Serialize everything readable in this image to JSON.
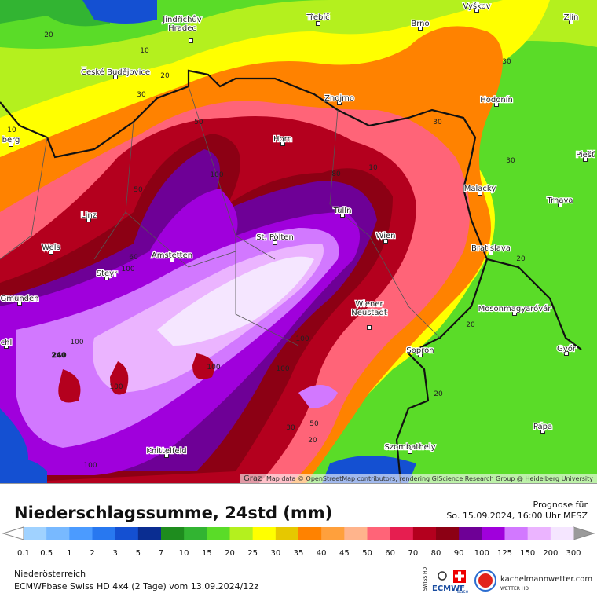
{
  "map": {
    "attribution_city": "Graz",
    "attribution": "Map data © OpenStreetMap contributors, rendering GIScience Research Group @ Heidelberg University",
    "cities": [
      [
        "Jindřichův",
        "Hradec"
      ],
      [
        "Třebíč"
      ],
      [
        "Brno"
      ],
      [
        "Vyškov"
      ],
      [
        "Zlín"
      ],
      [
        "České Budějovice"
      ],
      [
        "Znojmo"
      ],
      [
        "Hodonín"
      ],
      [
        "Horn"
      ],
      [
        "Malacky"
      ],
      [
        "Trnava"
      ],
      [
        "Linz"
      ],
      [
        "Tulln"
      ],
      [
        "Wien"
      ],
      [
        "St. Pölten"
      ],
      [
        "Bratislava"
      ],
      [
        "Wels"
      ],
      [
        "Amstetten"
      ],
      [
        "Steyr"
      ],
      [
        "Gmunden"
      ],
      [
        "Wiener",
        "Neustadt"
      ],
      [
        "Mosonmagyaróvár"
      ],
      [
        "Győr"
      ],
      [
        "Sopron"
      ],
      [
        "Pápa"
      ],
      [
        "Knittelfeld"
      ],
      [
        "Szombathely"
      ],
      [
        "Piešť"
      ],
      [
        "berg"
      ],
      [
        "chl"
      ]
    ],
    "contour_labels": [
      20,
      10,
      20,
      30,
      50,
      30,
      30,
      10,
      10,
      50,
      80,
      100,
      60,
      100,
      100,
      100,
      240,
      100,
      100,
      30,
      20,
      20,
      30,
      20,
      20,
      50,
      100,
      100
    ],
    "max_label": 240
  },
  "footer": {
    "title": "Niederschlagssumme, 24std (mm)",
    "forecast_label": "Prognose für",
    "forecast_time": "So. 15.09.2024, 16:00 Uhr MESZ",
    "region": "Niederösterreich",
    "model_run": "ECMWFbase Swiss HD 4x4 (2 Tage) vom 13.09.2024/12z",
    "brand": "kachelmannwetter.com",
    "brand_sub": "WETTER HD",
    "logo_a": "SWISS HD",
    "logo_b": "ECMWF",
    "logo_c": "base"
  },
  "legend": {
    "ticks": [
      0.1,
      0.5,
      1,
      2,
      3,
      5,
      7,
      10,
      15,
      20,
      25,
      30,
      35,
      40,
      45,
      50,
      60,
      70,
      80,
      90,
      100,
      125,
      150,
      200,
      300
    ],
    "colors": [
      "#a0d2ff",
      "#78b9ff",
      "#4b9bff",
      "#2878f0",
      "#1450d2",
      "#0a2d91",
      "#1e8c1e",
      "#32b432",
      "#5adc28",
      "#b4f01e",
      "#ffff00",
      "#e6c800",
      "#ff8200",
      "#ffa03c",
      "#ffb48c",
      "#ff6478",
      "#e61e50",
      "#b4001e",
      "#8c0014",
      "#6e0096",
      "#a000dc",
      "#d278ff",
      "#ebb4ff",
      "#f5e6ff"
    ],
    "under_color": "#ffffff",
    "over_color": "#9a9a9a"
  }
}
